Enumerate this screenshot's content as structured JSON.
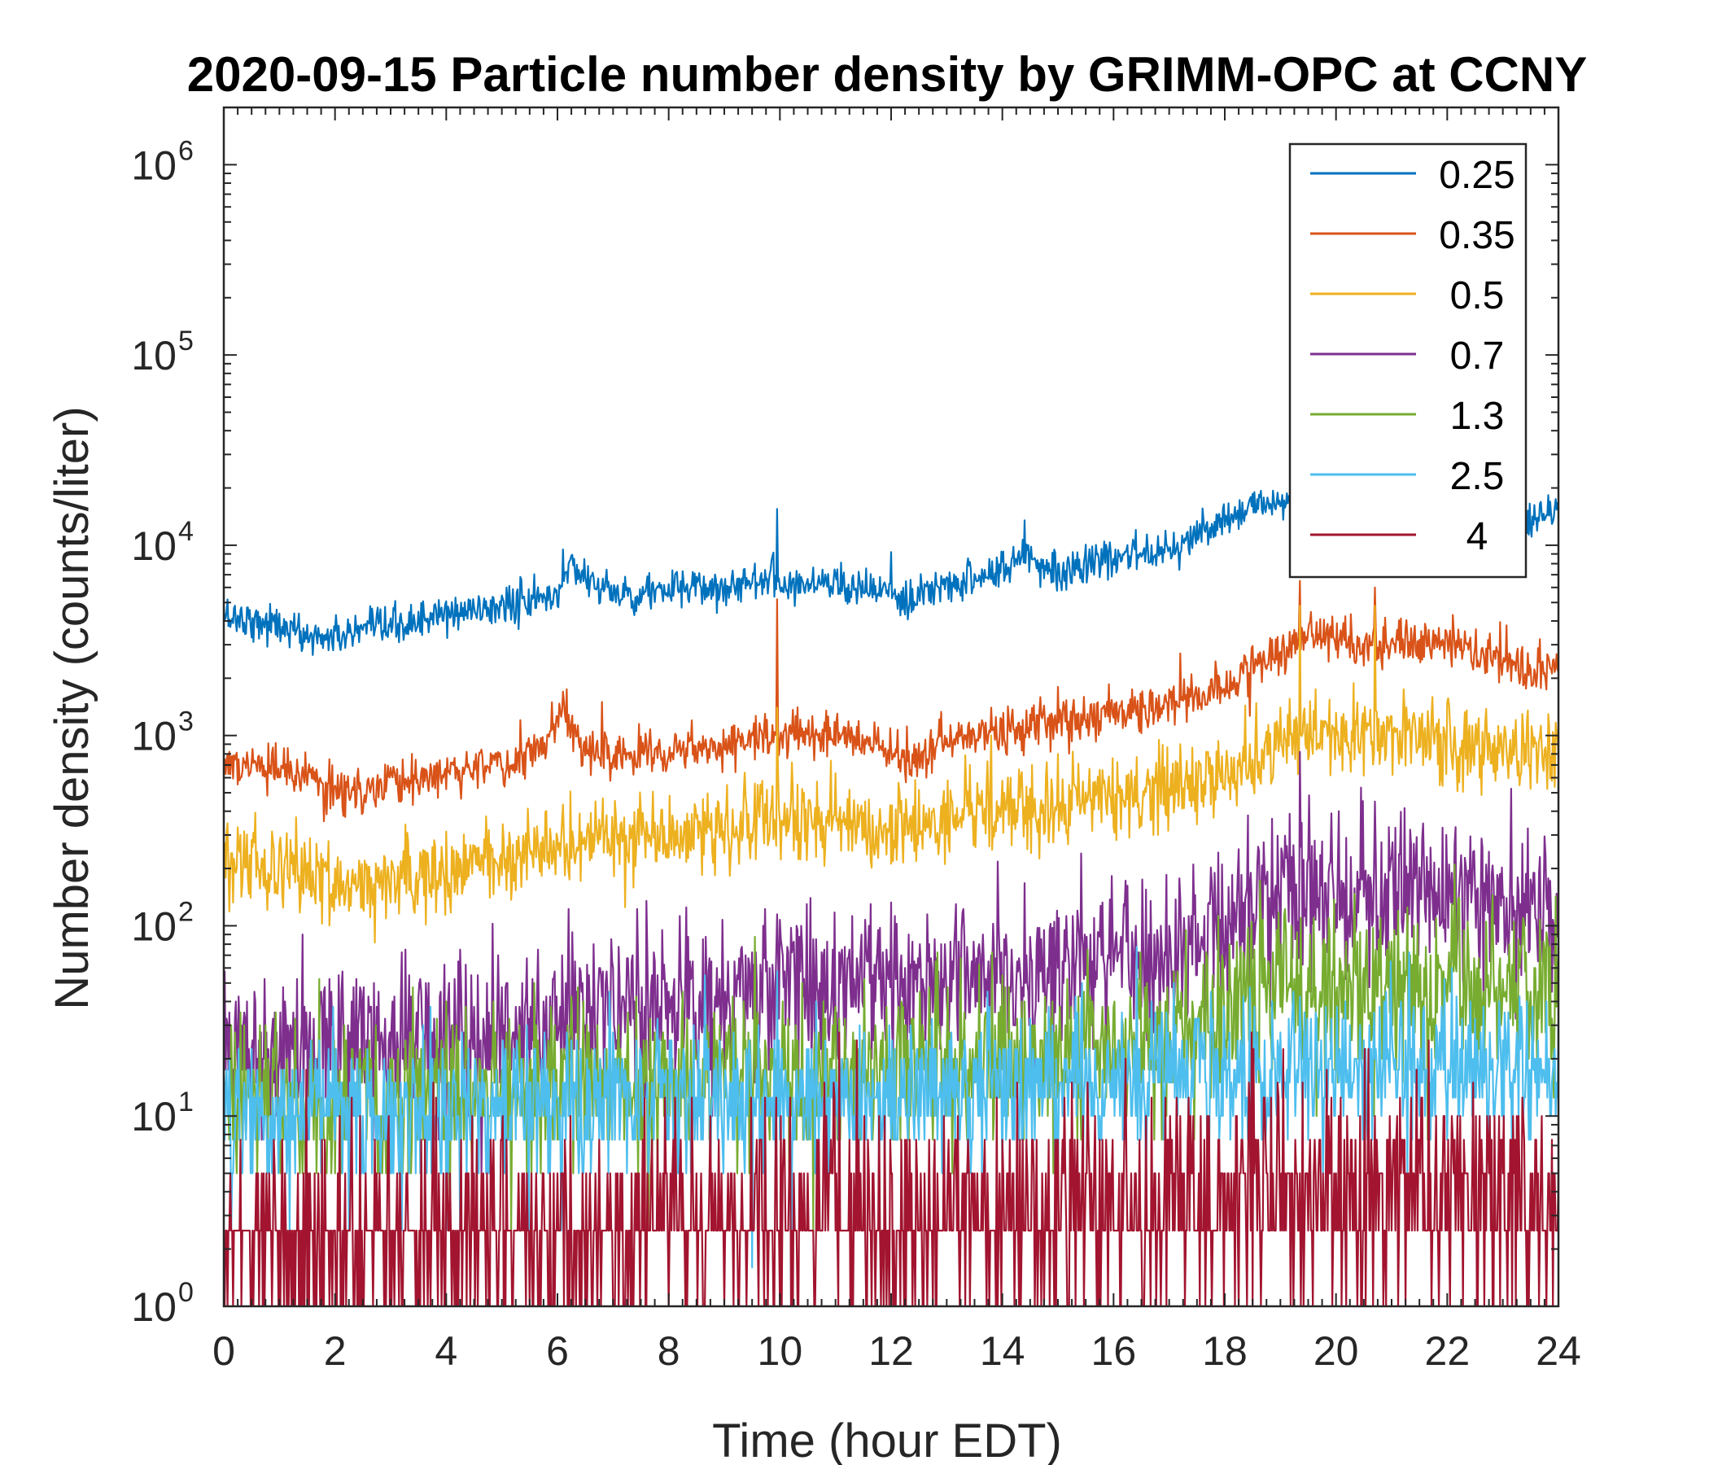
{
  "chart_data": {
    "type": "line",
    "title": "2020-09-15 Particle number density by GRIMM-OPC at CCNY",
    "xlabel": "Time (hour EDT)",
    "ylabel": "Number density (counts/liter)",
    "xlim": [
      0,
      24
    ],
    "ylim": [
      1,
      2000000
    ],
    "yscale": "log",
    "xticks": [
      0,
      2,
      4,
      6,
      8,
      10,
      12,
      14,
      16,
      18,
      20,
      22,
      24
    ],
    "yticks": [
      {
        "value": 1,
        "base": "10",
        "exp": "0"
      },
      {
        "value": 10,
        "base": "10",
        "exp": "1"
      },
      {
        "value": 100,
        "base": "10",
        "exp": "2"
      },
      {
        "value": 1000,
        "base": "10",
        "exp": "3"
      },
      {
        "value": 10000,
        "base": "10",
        "exp": "4"
      },
      {
        "value": 100000,
        "base": "10",
        "exp": "5"
      },
      {
        "value": 1000000,
        "base": "10",
        "exp": "6"
      }
    ],
    "grid": false,
    "legend_position": "top-right",
    "series": [
      {
        "name": "0.25",
        "color": "#0072BD",
        "x": [
          0,
          1,
          1.5,
          2,
          3,
          4,
          5,
          6,
          6.2,
          7,
          8,
          9,
          9.9,
          10,
          11,
          12,
          12.3,
          13,
          14,
          14.4,
          15,
          16,
          17,
          18,
          18.5,
          19,
          20,
          21,
          22,
          23,
          23.5,
          24
        ],
        "y": [
          4300,
          3800,
          3300,
          3300,
          3700,
          4300,
          4800,
          5400,
          8000,
          5500,
          5800,
          6000,
          7000,
          6200,
          6500,
          5500,
          4800,
          6300,
          7300,
          9000,
          7300,
          8400,
          10000,
          13000,
          16000,
          17500,
          16000,
          15500,
          15000,
          14500,
          13000,
          16000
        ],
        "spikes": [
          [
            6.1,
            9500
          ],
          [
            9.95,
            15500
          ],
          [
            12.0,
            9200
          ],
          [
            14.4,
            13500
          ]
        ],
        "noise": 0.05
      },
      {
        "name": "0.35",
        "color": "#D95319",
        "x": [
          0,
          1,
          2,
          2.5,
          3,
          4,
          5,
          5.8,
          6.1,
          6.5,
          7,
          8,
          9,
          10,
          11,
          12,
          12.3,
          13,
          14,
          15,
          16,
          17,
          18,
          18.5,
          19,
          19.5,
          20,
          21,
          22,
          23,
          23.5,
          24
        ],
        "y": [
          720,
          650,
          520,
          500,
          560,
          650,
          720,
          850,
          1400,
          800,
          800,
          860,
          920,
          1000,
          1050,
          800,
          700,
          950,
          1050,
          1200,
          1300,
          1500,
          1750,
          2300,
          2700,
          3700,
          3100,
          3000,
          3000,
          2500,
          2100,
          2400
        ],
        "spikes": [
          [
            6.8,
            1500
          ],
          [
            9.95,
            5200
          ],
          [
            13.8,
            1400
          ],
          [
            15.0,
            1800
          ],
          [
            17.2,
            2700
          ],
          [
            19.35,
            6500
          ],
          [
            20.7,
            6000
          ]
        ],
        "noise": 0.06
      },
      {
        "name": "0.5",
        "color": "#EDB120",
        "x": [
          0,
          1,
          2,
          2.5,
          3,
          4,
          5,
          6,
          7,
          8,
          9,
          10,
          11,
          12,
          13,
          14,
          15,
          16,
          17,
          18,
          18.5,
          19,
          19.5,
          20,
          21,
          22,
          23,
          24
        ],
        "y": [
          250,
          200,
          165,
          150,
          175,
          200,
          230,
          260,
          290,
          310,
          330,
          340,
          350,
          320,
          360,
          400,
          430,
          470,
          530,
          640,
          780,
          950,
          1100,
          1000,
          1050,
          950,
          850,
          800
        ],
        "spikes": [
          [
            9.95,
            1400
          ],
          [
            13.8,
            1000
          ],
          [
            15.0,
            800
          ],
          [
            17.2,
            900
          ],
          [
            19.35,
            4800
          ],
          [
            20.7,
            4800
          ]
        ],
        "noise": 0.11
      },
      {
        "name": "0.7",
        "color": "#7E2F8E",
        "x": [
          0,
          2,
          4,
          6,
          8,
          10,
          12,
          14,
          16,
          17,
          18,
          18.5,
          19,
          20,
          21,
          22,
          23,
          24
        ],
        "y": [
          24,
          25,
          28,
          32,
          40,
          46,
          52,
          58,
          65,
          78,
          95,
          130,
          155,
          145,
          145,
          140,
          130,
          120
        ],
        "spikes": [
          [
            19.35,
            820
          ],
          [
            20.7,
            450
          ]
        ],
        "noise": 0.22
      },
      {
        "name": "1.3",
        "color": "#77AC30",
        "x": [
          0,
          2,
          4,
          6,
          8,
          10,
          12,
          14,
          16,
          17,
          18,
          18.5,
          19,
          20,
          21,
          22,
          23,
          24
        ],
        "y": [
          12,
          12,
          13,
          14,
          15,
          17,
          18,
          20,
          24,
          28,
          33,
          45,
          48,
          50,
          48,
          46,
          43,
          42
        ],
        "spikes": [],
        "noise": 0.22
      },
      {
        "name": "2.5",
        "color": "#4DBEEE",
        "x": [
          0,
          2,
          4,
          6,
          8,
          10,
          12,
          14,
          16,
          18,
          20,
          22,
          24
        ],
        "y": [
          10,
          10,
          11,
          11,
          12,
          12,
          13,
          14,
          15,
          16,
          17,
          17,
          17
        ],
        "spikes": [
          [
            10.2,
            1
          ],
          [
            9.5,
            1.6
          ]
        ],
        "noise": 0.2
      },
      {
        "name": "4",
        "color": "#A2142F",
        "x": [
          0,
          2,
          4,
          6,
          8,
          10,
          12,
          14,
          16,
          18,
          20,
          22,
          24
        ],
        "y": [
          2.2,
          2.3,
          2.4,
          2.5,
          2.6,
          2.8,
          3,
          3.2,
          3.5,
          4,
          4.5,
          4.2,
          4
        ],
        "spikes": [],
        "noise": 0.3
      }
    ]
  }
}
